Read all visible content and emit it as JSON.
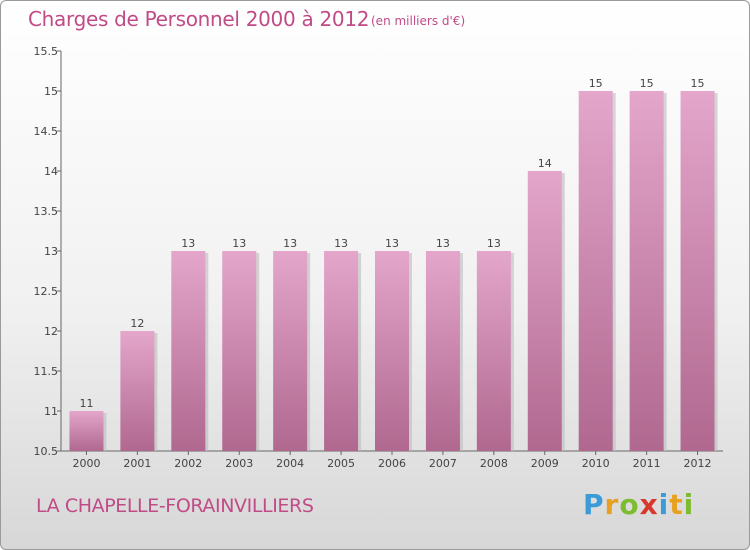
{
  "title": "Charges de Personnel 2000 à 2012",
  "subtitle": "(en milliers d'€)",
  "commune": "LA CHAPELLE-FORAINVILLIERS",
  "logo": {
    "letters": [
      "P",
      "r",
      "o",
      "x",
      "i",
      "t",
      "i"
    ]
  },
  "colors": {
    "bar": "#d890b8",
    "bar_dark": "#b86c98",
    "text": "#c14b86"
  },
  "chart_data": {
    "type": "bar",
    "categories": [
      "2000",
      "2001",
      "2002",
      "2003",
      "2004",
      "2005",
      "2006",
      "2007",
      "2008",
      "2009",
      "2010",
      "2011",
      "2012"
    ],
    "values": [
      11,
      12,
      13,
      13,
      13,
      13,
      13,
      13,
      13,
      14,
      15,
      15,
      15
    ],
    "ylim": [
      10.5,
      15.5
    ],
    "yticks": [
      10.5,
      11,
      11.5,
      12,
      12.5,
      13,
      13.5,
      14,
      14.5,
      15,
      15.5
    ],
    "ytick_labels": [
      "10.5",
      "11",
      "11.5",
      "12",
      "12.5",
      "13",
      "13.5",
      "14",
      "14.5",
      "15",
      "15.5"
    ],
    "grid": false,
    "title": "Charges de Personnel 2000 à 2012",
    "xlabel": "",
    "ylabel": ""
  }
}
